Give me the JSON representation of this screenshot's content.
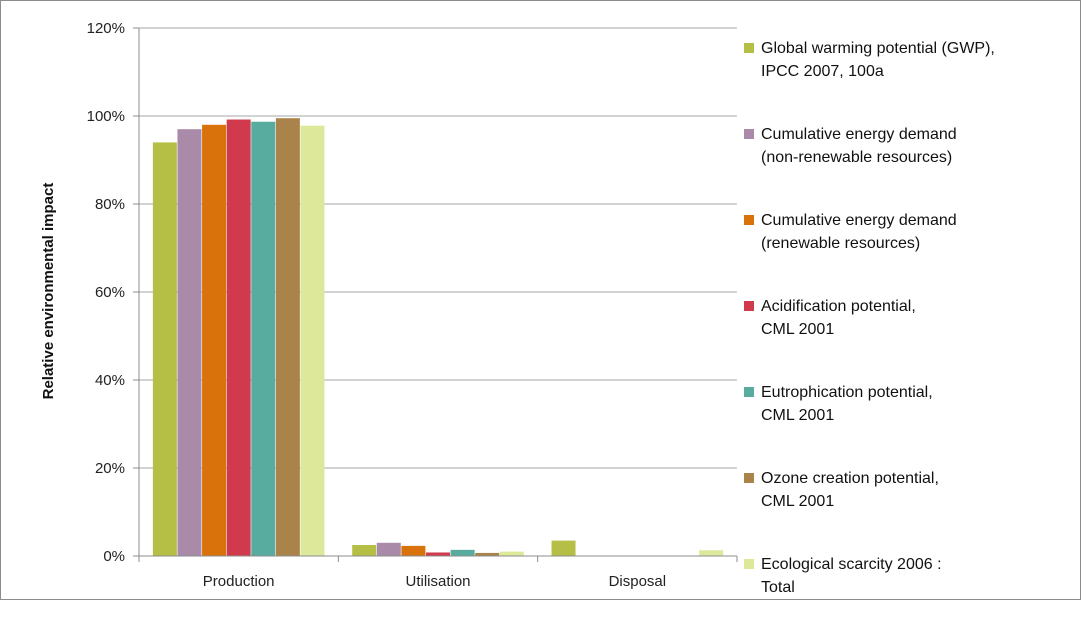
{
  "chart_data": {
    "type": "bar",
    "title": "",
    "xlabel": "",
    "ylabel": "Relative environmental impact",
    "ylim": [
      0,
      120
    ],
    "yticks": [
      "0%",
      "20%",
      "40%",
      "60%",
      "80%",
      "100%",
      "120%"
    ],
    "grid": true,
    "legend_position": "right",
    "categories": [
      "Production",
      "Utilisation",
      "Disposal"
    ],
    "series": [
      {
        "name": "Global warming potential (GWP),\nIPCC 2007, 100a",
        "color": "#b5bf45",
        "values": [
          94,
          2.5,
          3.5
        ]
      },
      {
        "name": "Cumulative energy demand\n(non-renewable resources)",
        "color": "#a98aa8",
        "values": [
          97,
          3,
          0
        ]
      },
      {
        "name": "Cumulative energy demand\n(renewable resources)",
        "color": "#d9720b",
        "values": [
          98,
          2.3,
          0
        ]
      },
      {
        "name": "Acidification potential,\nCML 2001",
        "color": "#d03a4c",
        "values": [
          99.2,
          0.8,
          0
        ]
      },
      {
        "name": "Eutrophication potential,\nCML 2001",
        "color": "#58ab9f",
        "values": [
          98.7,
          1.4,
          0
        ]
      },
      {
        "name": "Ozone creation potential,\nCML 2001",
        "color": "#a98349",
        "values": [
          99.5,
          0.7,
          0
        ]
      },
      {
        "name": "Ecological scarcity 2006 :\nTotal",
        "color": "#dde89a",
        "values": [
          97.8,
          1,
          1.3
        ]
      }
    ]
  }
}
